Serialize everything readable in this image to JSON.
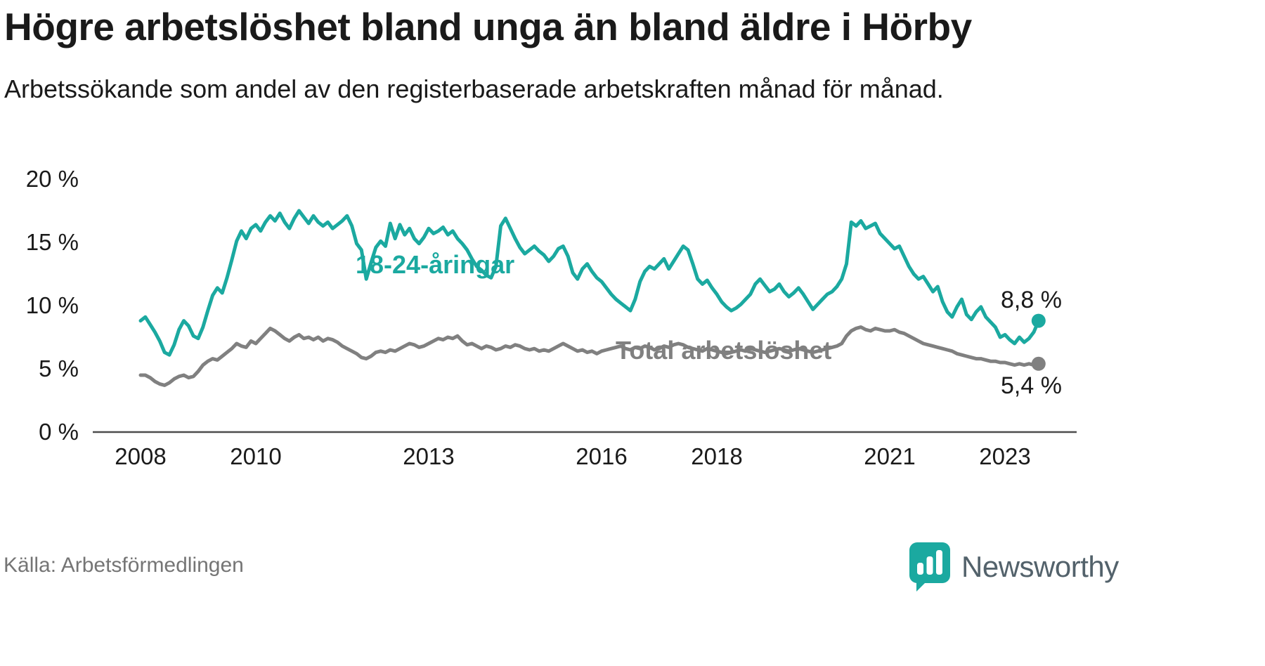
{
  "header": {
    "title": "Högre arbetslöshet bland unga än bland äldre i Hörby",
    "subtitle": "Arbetssökande som andel av den registerbaserade arbetskraften månad för månad."
  },
  "footer": {
    "source": "Källa: Arbetsförmedlingen",
    "brand": "Newsworthy"
  },
  "colors": {
    "accent": "#1ba9a0",
    "gray_series": "#808080",
    "axis": "#4d4d4d",
    "text": "#1a1a1a"
  },
  "chart_data": {
    "type": "line",
    "title": "Högre arbetslöshet bland unga än bland äldre i Hörby",
    "subtitle": "Arbetssökande som andel av den registerbaserade arbetskraften månad för månad.",
    "frequency": "monthly",
    "x_start_year": 2008,
    "x_start_month": 1,
    "x_ticks": [
      2008,
      2010,
      2013,
      2016,
      2018,
      2021,
      2023
    ],
    "y_ticks": [
      "0 %",
      "5 %",
      "10 %",
      "15 %",
      "20 %"
    ],
    "y_tick_values": [
      0,
      5,
      10,
      15,
      20
    ],
    "ylim": [
      0,
      20
    ],
    "grid": false,
    "legend_position": "inline-labels",
    "series": [
      {
        "name": "18-24-åringar",
        "color": "#1ba9a0",
        "end_label": "8,8 %",
        "end_value": 8.8,
        "values": [
          8.8,
          9.1,
          8.5,
          7.9,
          7.2,
          6.3,
          6.1,
          6.9,
          8.1,
          8.8,
          8.4,
          7.6,
          7.4,
          8.3,
          9.6,
          10.8,
          11.4,
          11.0,
          12.2,
          13.6,
          15.1,
          15.9,
          15.3,
          16.1,
          16.4,
          15.9,
          16.6,
          17.1,
          16.7,
          17.3,
          16.6,
          16.1,
          16.9,
          17.5,
          17.0,
          16.5,
          17.1,
          16.6,
          16.3,
          16.6,
          16.1,
          16.4,
          16.7,
          17.1,
          16.3,
          14.9,
          14.4,
          12.1,
          13.4,
          14.6,
          15.1,
          14.7,
          16.5,
          15.3,
          16.4,
          15.6,
          16.1,
          15.3,
          14.9,
          15.4,
          16.1,
          15.7,
          15.9,
          16.2,
          15.6,
          15.9,
          15.3,
          14.9,
          14.4,
          13.7,
          13.1,
          12.8,
          12.4,
          12.2,
          13.1,
          16.3,
          16.9,
          16.1,
          15.3,
          14.6,
          14.1,
          14.4,
          14.7,
          14.3,
          14.0,
          13.5,
          13.9,
          14.5,
          14.7,
          13.9,
          12.6,
          12.1,
          12.9,
          13.3,
          12.7,
          12.2,
          11.9,
          11.4,
          10.9,
          10.5,
          10.2,
          9.9,
          9.6,
          10.5,
          11.9,
          12.7,
          13.1,
          12.9,
          13.3,
          13.7,
          12.9,
          13.5,
          14.1,
          14.7,
          14.4,
          13.3,
          12.1,
          11.7,
          12.0,
          11.4,
          10.9,
          10.3,
          9.9,
          9.6,
          9.8,
          10.1,
          10.5,
          10.9,
          11.7,
          12.1,
          11.6,
          11.1,
          11.3,
          11.7,
          11.1,
          10.7,
          11.0,
          11.4,
          10.9,
          10.3,
          9.7,
          10.1,
          10.5,
          10.9,
          11.1,
          11.5,
          12.1,
          13.3,
          16.6,
          16.3,
          16.7,
          16.1,
          16.3,
          16.5,
          15.7,
          15.3,
          14.9,
          14.5,
          14.7,
          13.9,
          13.1,
          12.5,
          12.1,
          12.3,
          11.7,
          11.1,
          11.5,
          10.3,
          9.5,
          9.1,
          9.9,
          10.5,
          9.3,
          8.9,
          9.5,
          9.9,
          9.1,
          8.7,
          8.3,
          7.5,
          7.7,
          7.3,
          7.0,
          7.5,
          7.1,
          7.4,
          7.9,
          8.8
        ]
      },
      {
        "name": "Total arbetslöshet",
        "color": "#808080",
        "end_label": "5,4 %",
        "end_value": 5.4,
        "values": [
          4.5,
          4.5,
          4.3,
          4.0,
          3.8,
          3.7,
          3.9,
          4.2,
          4.4,
          4.5,
          4.3,
          4.4,
          4.8,
          5.3,
          5.6,
          5.8,
          5.7,
          6.0,
          6.3,
          6.6,
          7.0,
          6.8,
          6.7,
          7.2,
          7.0,
          7.4,
          7.8,
          8.2,
          8.0,
          7.7,
          7.4,
          7.2,
          7.5,
          7.7,
          7.4,
          7.5,
          7.3,
          7.5,
          7.2,
          7.4,
          7.3,
          7.1,
          6.8,
          6.6,
          6.4,
          6.2,
          5.9,
          5.8,
          6.0,
          6.3,
          6.4,
          6.3,
          6.5,
          6.4,
          6.6,
          6.8,
          7.0,
          6.9,
          6.7,
          6.8,
          7.0,
          7.2,
          7.4,
          7.3,
          7.5,
          7.4,
          7.6,
          7.2,
          6.9,
          7.0,
          6.8,
          6.6,
          6.8,
          6.7,
          6.5,
          6.6,
          6.8,
          6.7,
          6.9,
          6.8,
          6.6,
          6.5,
          6.6,
          6.4,
          6.5,
          6.4,
          6.6,
          6.8,
          7.0,
          6.8,
          6.6,
          6.4,
          6.5,
          6.3,
          6.4,
          6.2,
          6.4,
          6.5,
          6.6,
          6.7,
          6.8,
          6.6,
          6.5,
          6.7,
          6.6,
          6.8,
          6.7,
          6.5,
          6.6,
          6.8,
          6.7,
          6.9,
          7.0,
          6.9,
          6.7,
          6.6,
          6.5,
          6.4,
          6.6,
          6.5,
          6.4,
          6.3,
          6.2,
          6.3,
          6.4,
          6.5,
          6.4,
          6.6,
          6.5,
          6.4,
          6.3,
          6.4,
          6.5,
          6.6,
          6.5,
          6.4,
          6.5,
          6.6,
          6.5,
          6.4,
          6.3,
          6.4,
          6.5,
          6.6,
          6.7,
          6.8,
          7.0,
          7.6,
          8.0,
          8.2,
          8.3,
          8.1,
          8.0,
          8.2,
          8.1,
          8.0,
          8.0,
          8.1,
          7.9,
          7.8,
          7.6,
          7.4,
          7.2,
          7.0,
          6.9,
          6.8,
          6.7,
          6.6,
          6.5,
          6.4,
          6.2,
          6.1,
          6.0,
          5.9,
          5.8,
          5.8,
          5.7,
          5.6,
          5.6,
          5.5,
          5.5,
          5.4,
          5.3,
          5.4,
          5.3,
          5.4,
          5.3,
          5.4
        ]
      }
    ]
  }
}
